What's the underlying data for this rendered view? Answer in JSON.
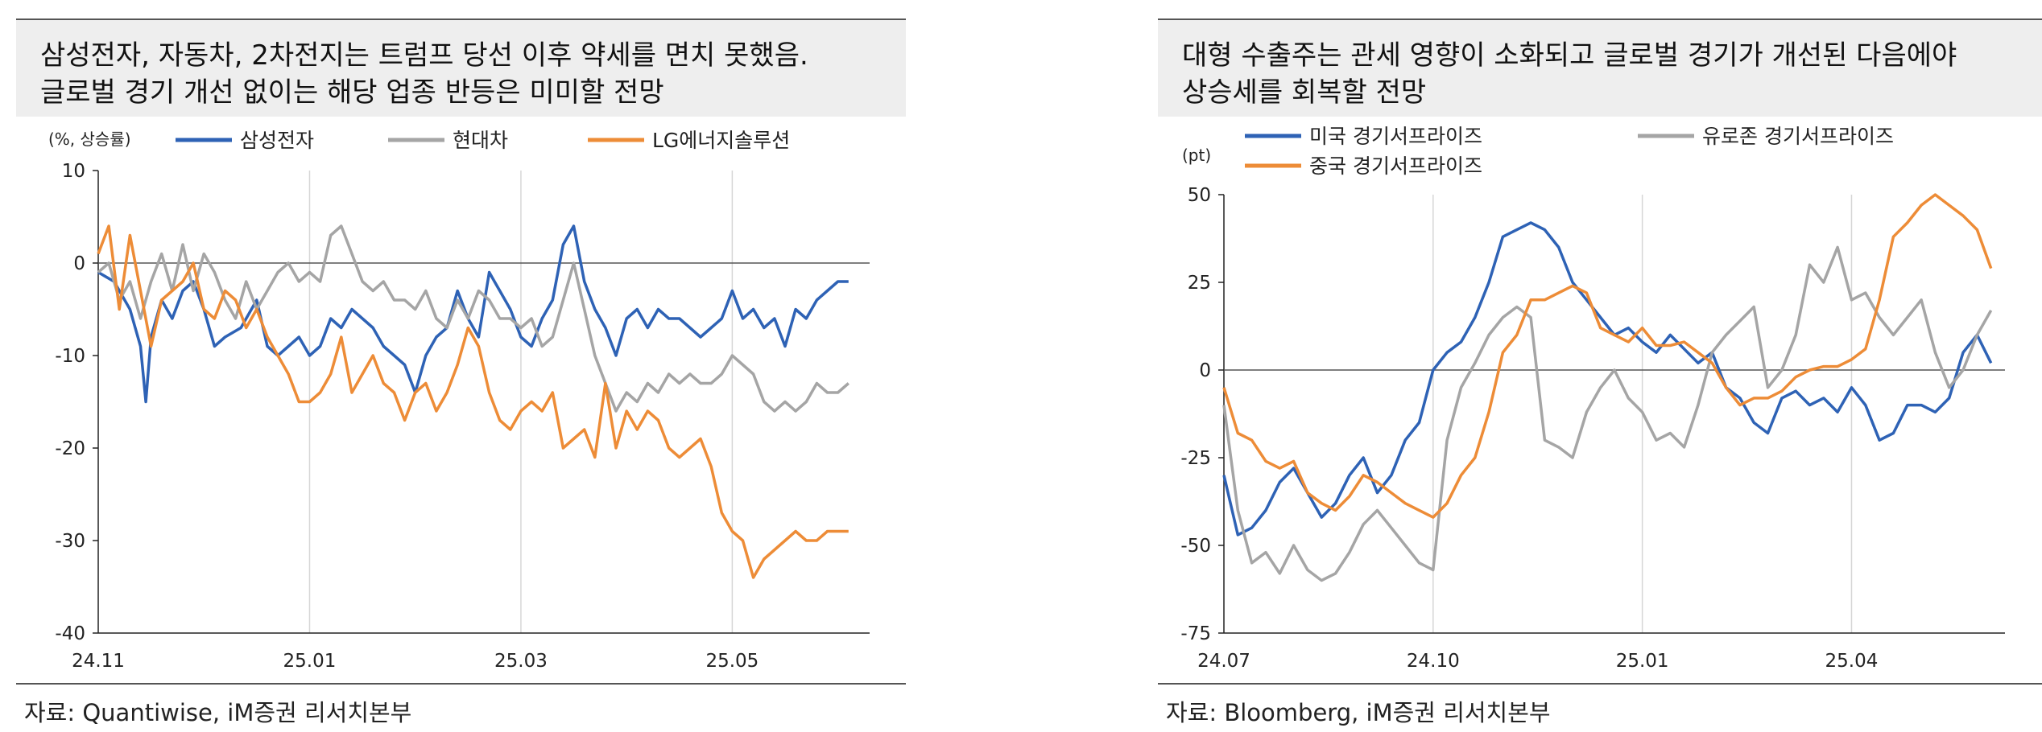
{
  "left_panel": {
    "header_line1": "삼성전자, 자동차, 2차전지는 트럼프 당선 이후 약세를 면치 못했음.",
    "header_line2": "글로벌 경기 개선 없이는 해당 업종 반등은 미미할 전망",
    "source": "자료: Quantiwise, iM증권 리서치본부"
  },
  "right_panel": {
    "header_line1": "대형 수출주는 관세 영향이 소화되고 글로벌 경기가 개선된 다음에야",
    "header_line2": "상승세를 회복할 전망",
    "source": "자료: Bloomberg, iM증권 리서치본부"
  },
  "chart_data": [
    {
      "type": "line",
      "ylabel": "(%, 상승률)",
      "ylim": [
        -40,
        10
      ],
      "yticks": [
        10,
        0,
        -10,
        -20,
        -30,
        -40
      ],
      "x_tick_labels": [
        "24.11",
        "25.01",
        "25.03",
        "25.05"
      ],
      "x_tick_positions": [
        0,
        2,
        4,
        6
      ],
      "xlim": [
        0,
        7.3
      ],
      "legend_position": "top",
      "grid": "vertical lines at x ticks",
      "series": [
        {
          "name": "삼성전자",
          "color": "#2e62b5",
          "x": [
            0,
            0.15,
            0.3,
            0.4,
            0.45,
            0.5,
            0.6,
            0.7,
            0.8,
            0.9,
            1.0,
            1.1,
            1.2,
            1.35,
            1.5,
            1.6,
            1.7,
            1.8,
            1.9,
            2.0,
            2.1,
            2.2,
            2.3,
            2.4,
            2.5,
            2.6,
            2.7,
            2.8,
            2.9,
            3.0,
            3.1,
            3.2,
            3.3,
            3.4,
            3.5,
            3.6,
            3.7,
            3.75,
            3.8,
            3.9,
            4.0,
            4.1,
            4.2,
            4.3,
            4.4,
            4.5,
            4.6,
            4.7,
            4.8,
            4.9,
            5.0,
            5.1,
            5.2,
            5.3,
            5.4,
            5.5,
            5.6,
            5.7,
            5.8,
            5.9,
            6.0,
            6.1,
            6.2,
            6.3,
            6.4,
            6.5,
            6.6,
            6.7,
            6.8,
            6.9,
            7.0,
            7.1
          ],
          "y": [
            -1,
            -2,
            -5,
            -9,
            -15,
            -8,
            -4,
            -6,
            -3,
            -2,
            -5,
            -9,
            -8,
            -7,
            -4,
            -9,
            -10,
            -9,
            -8,
            -10,
            -9,
            -6,
            -7,
            -5,
            -6,
            -7,
            -9,
            -10,
            -11,
            -14,
            -10,
            -8,
            -7,
            -3,
            -6,
            -8,
            -1,
            -2,
            -3,
            -5,
            -8,
            -9,
            -6,
            -4,
            2,
            4,
            -2,
            -5,
            -7,
            -10,
            -6,
            -5,
            -7,
            -5,
            -6,
            -6,
            -7,
            -8,
            -7,
            -6,
            -3,
            -6,
            -5,
            -7,
            -6,
            -9,
            -5,
            -6,
            -4,
            -3,
            -2,
            -2
          ],
          "note": "approximate trace read from chart"
        },
        {
          "name": "현대차",
          "color": "#a5a5a5",
          "x": [
            0,
            0.1,
            0.2,
            0.3,
            0.4,
            0.5,
            0.6,
            0.7,
            0.8,
            0.9,
            1.0,
            1.1,
            1.2,
            1.3,
            1.4,
            1.5,
            1.6,
            1.7,
            1.8,
            1.9,
            2.0,
            2.1,
            2.2,
            2.3,
            2.4,
            2.5,
            2.6,
            2.7,
            2.8,
            2.9,
            3.0,
            3.1,
            3.2,
            3.3,
            3.4,
            3.5,
            3.6,
            3.7,
            3.8,
            3.9,
            4.0,
            4.1,
            4.2,
            4.3,
            4.4,
            4.5,
            4.6,
            4.7,
            4.8,
            4.9,
            5.0,
            5.1,
            5.2,
            5.3,
            5.4,
            5.5,
            5.6,
            5.7,
            5.8,
            5.9,
            6.0,
            6.1,
            6.2,
            6.3,
            6.4,
            6.5,
            6.6,
            6.7,
            6.8,
            6.9,
            7.0,
            7.1
          ],
          "y": [
            -1,
            0,
            -4,
            -2,
            -6,
            -2,
            1,
            -3,
            2,
            -3,
            1,
            -1,
            -4,
            -6,
            -2,
            -5,
            -3,
            -1,
            0,
            -2,
            -1,
            -2,
            3,
            4,
            1,
            -2,
            -3,
            -2,
            -4,
            -4,
            -5,
            -3,
            -6,
            -7,
            -4,
            -6,
            -3,
            -4,
            -6,
            -6,
            -7,
            -6,
            -9,
            -8,
            -4,
            0,
            -5,
            -10,
            -13,
            -16,
            -14,
            -15,
            -13,
            -14,
            -12,
            -13,
            -12,
            -13,
            -13,
            -12,
            -10,
            -11,
            -12,
            -15,
            -16,
            -15,
            -16,
            -15,
            -13,
            -14,
            -14,
            -13
          ],
          "note": "approximate trace read from chart"
        },
        {
          "name": "LG에너지솔루션",
          "color": "#ed8c37",
          "x": [
            0,
            0.1,
            0.2,
            0.3,
            0.4,
            0.5,
            0.6,
            0.7,
            0.8,
            0.9,
            1.0,
            1.1,
            1.2,
            1.3,
            1.4,
            1.5,
            1.6,
            1.7,
            1.8,
            1.9,
            2.0,
            2.1,
            2.2,
            2.3,
            2.4,
            2.5,
            2.6,
            2.7,
            2.8,
            2.9,
            3.0,
            3.1,
            3.2,
            3.3,
            3.4,
            3.5,
            3.6,
            3.7,
            3.8,
            3.9,
            4.0,
            4.1,
            4.2,
            4.3,
            4.4,
            4.5,
            4.6,
            4.7,
            4.8,
            4.9,
            5.0,
            5.1,
            5.2,
            5.3,
            5.4,
            5.5,
            5.6,
            5.7,
            5.8,
            5.9,
            6.0,
            6.1,
            6.2,
            6.3,
            6.4,
            6.5,
            6.6,
            6.7,
            6.8,
            6.9,
            7.0,
            7.1
          ],
          "y": [
            1,
            4,
            -5,
            3,
            -3,
            -9,
            -4,
            -3,
            -2,
            0,
            -5,
            -6,
            -3,
            -4,
            -7,
            -5,
            -8,
            -10,
            -12,
            -15,
            -15,
            -14,
            -12,
            -8,
            -14,
            -12,
            -10,
            -13,
            -14,
            -17,
            -14,
            -13,
            -16,
            -14,
            -11,
            -7,
            -9,
            -14,
            -17,
            -18,
            -16,
            -15,
            -16,
            -14,
            -20,
            -19,
            -18,
            -21,
            -13,
            -20,
            -16,
            -18,
            -16,
            -17,
            -20,
            -21,
            -20,
            -19,
            -22,
            -27,
            -29,
            -30,
            -34,
            -32,
            -31,
            -30,
            -29,
            -30,
            -30,
            -29,
            -29,
            -29
          ],
          "note": "approximate trace read from chart"
        }
      ]
    },
    {
      "type": "line",
      "ylabel": "(pt)",
      "ylim": [
        -75,
        50
      ],
      "yticks": [
        50,
        25,
        0,
        -25,
        -50,
        -75
      ],
      "x_tick_labels": [
        "24.07",
        "24.10",
        "25.01",
        "25.04"
      ],
      "x_tick_positions": [
        0,
        3,
        6,
        9
      ],
      "xlim": [
        0,
        11.2
      ],
      "legend_position": "top",
      "grid": "vertical lines at x ticks",
      "series": [
        {
          "name": "미국 경기서프라이즈",
          "color": "#2e62b5",
          "x": [
            0,
            0.2,
            0.4,
            0.6,
            0.8,
            1.0,
            1.2,
            1.4,
            1.6,
            1.8,
            2.0,
            2.2,
            2.4,
            2.6,
            2.8,
            3.0,
            3.2,
            3.4,
            3.6,
            3.8,
            4.0,
            4.2,
            4.4,
            4.6,
            4.8,
            5.0,
            5.2,
            5.4,
            5.6,
            5.8,
            6.0,
            6.2,
            6.4,
            6.6,
            6.8,
            7.0,
            7.2,
            7.4,
            7.6,
            7.8,
            8.0,
            8.2,
            8.4,
            8.6,
            8.8,
            9.0,
            9.2,
            9.4,
            9.6,
            9.8,
            10.0,
            10.2,
            10.4,
            10.6,
            10.8,
            11.0
          ],
          "y": [
            -30,
            -47,
            -45,
            -40,
            -32,
            -28,
            -35,
            -42,
            -38,
            -30,
            -25,
            -35,
            -30,
            -20,
            -15,
            0,
            5,
            8,
            15,
            25,
            38,
            40,
            42,
            40,
            35,
            25,
            20,
            15,
            10,
            12,
            8,
            5,
            10,
            6,
            2,
            5,
            -5,
            -8,
            -15,
            -18,
            -8,
            -6,
            -10,
            -8,
            -12,
            -5,
            -10,
            -20,
            -18,
            -10,
            -10,
            -12,
            -8,
            5,
            10,
            2
          ],
          "note": "approximate trace read from chart"
        },
        {
          "name": "유로존 경기서프라이즈",
          "color": "#a5a5a5",
          "x": [
            0,
            0.2,
            0.4,
            0.6,
            0.8,
            1.0,
            1.2,
            1.4,
            1.6,
            1.8,
            2.0,
            2.2,
            2.4,
            2.6,
            2.8,
            3.0,
            3.2,
            3.4,
            3.6,
            3.8,
            4.0,
            4.2,
            4.4,
            4.6,
            4.8,
            5.0,
            5.2,
            5.4,
            5.6,
            5.8,
            6.0,
            6.2,
            6.4,
            6.6,
            6.8,
            7.0,
            7.2,
            7.4,
            7.6,
            7.8,
            8.0,
            8.2,
            8.4,
            8.6,
            8.8,
            9.0,
            9.2,
            9.4,
            9.6,
            9.8,
            10.0,
            10.2,
            10.4,
            10.6,
            10.8,
            11.0
          ],
          "y": [
            -10,
            -40,
            -55,
            -52,
            -58,
            -50,
            -57,
            -60,
            -58,
            -52,
            -44,
            -40,
            -45,
            -50,
            -55,
            -57,
            -20,
            -5,
            2,
            10,
            15,
            18,
            15,
            -20,
            -22,
            -25,
            -12,
            -5,
            0,
            -8,
            -12,
            -20,
            -18,
            -22,
            -10,
            5,
            10,
            14,
            18,
            -5,
            0,
            10,
            30,
            25,
            35,
            20,
            22,
            15,
            10,
            15,
            20,
            5,
            -5,
            0,
            10,
            17
          ],
          "note": "approximate trace read from chart"
        },
        {
          "name": "중국 경기서프라이즈",
          "color": "#ed8c37",
          "x": [
            0,
            0.2,
            0.4,
            0.6,
            0.8,
            1.0,
            1.2,
            1.4,
            1.6,
            1.8,
            2.0,
            2.2,
            2.4,
            2.6,
            2.8,
            3.0,
            3.2,
            3.4,
            3.6,
            3.8,
            4.0,
            4.2,
            4.4,
            4.6,
            4.8,
            5.0,
            5.2,
            5.4,
            5.6,
            5.8,
            6.0,
            6.2,
            6.4,
            6.6,
            6.8,
            7.0,
            7.2,
            7.4,
            7.6,
            7.8,
            8.0,
            8.2,
            8.4,
            8.6,
            8.8,
            9.0,
            9.2,
            9.4,
            9.6,
            9.8,
            10.0,
            10.2,
            10.4,
            10.6,
            10.8,
            11.0
          ],
          "y": [
            -5,
            -18,
            -20,
            -26,
            -28,
            -26,
            -35,
            -38,
            -40,
            -36,
            -30,
            -32,
            -35,
            -38,
            -40,
            -42,
            -38,
            -30,
            -25,
            -12,
            5,
            10,
            20,
            20,
            22,
            24,
            22,
            12,
            10,
            8,
            12,
            7,
            7,
            8,
            5,
            2,
            -5,
            -10,
            -8,
            -8,
            -6,
            -2,
            0,
            1,
            1,
            3,
            6,
            20,
            38,
            42,
            47,
            50,
            47,
            44,
            40,
            29
          ],
          "note": "approximate trace read from chart"
        }
      ]
    }
  ]
}
